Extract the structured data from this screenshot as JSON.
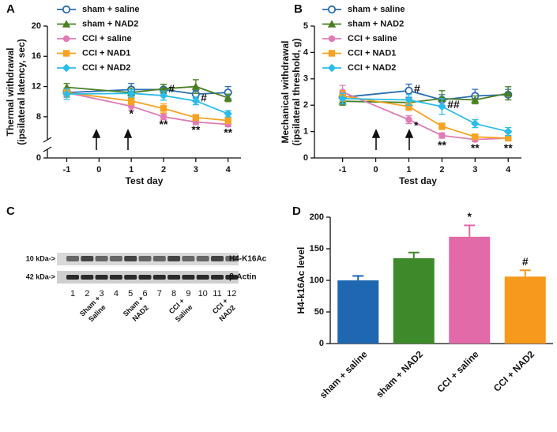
{
  "chart_data": [
    {
      "type": "line",
      "panel": "A",
      "ylabel": [
        "Thermal withdrawal",
        "(ipsilateral latency, sec)"
      ],
      "xlabel": "Test day",
      "x": [
        -1,
        1,
        2,
        3,
        4
      ],
      "xlim": [
        -1.6,
        4.4
      ],
      "xticks": [
        -1,
        0,
        1,
        2,
        3,
        4
      ],
      "ylim": [
        0,
        20
      ],
      "yticks": [
        0,
        8,
        12,
        16,
        20
      ],
      "ybreak": [
        0.5,
        6
      ],
      "series": [
        {
          "name": "sham + saline",
          "color": "#2a6db0",
          "marker": "circle-open",
          "values": [
            11.2,
            11.6,
            11.6,
            11.0,
            11.2
          ],
          "errors": [
            0.6,
            0.8,
            0.7,
            0.5,
            0.8
          ]
        },
        {
          "name": "sham + NAD2",
          "color": "#4a7f23",
          "marker": "triangle",
          "values": [
            11.9,
            11.2,
            11.7,
            12.0,
            10.5
          ],
          "errors": [
            0.5,
            0.6,
            0.6,
            0.9,
            0.5
          ]
        },
        {
          "name": "CCI + saline",
          "color": "#e07bb5",
          "marker": "circle",
          "values": [
            11.2,
            9.4,
            8.0,
            7.3,
            7.0
          ],
          "errors": [
            0.5,
            0.5,
            0.4,
            0.3,
            0.3
          ]
        },
        {
          "name": "CCI + NAD1",
          "color": "#f5a321",
          "marker": "square",
          "values": [
            11.2,
            10.1,
            9.1,
            7.9,
            7.5
          ],
          "errors": [
            0.5,
            0.5,
            0.6,
            0.4,
            0.4
          ]
        },
        {
          "name": "CCI + NAD2",
          "color": "#2bbde8",
          "marker": "diamond",
          "values": [
            11.0,
            11.1,
            10.8,
            10.1,
            8.4
          ],
          "errors": [
            0.7,
            0.5,
            0.6,
            0.5,
            0.4
          ]
        }
      ],
      "annotations": [
        {
          "text": "*",
          "x": 1,
          "y": 8.3
        },
        {
          "text": "**",
          "x": 2,
          "y": 6.9
        },
        {
          "text": "**",
          "x": 3,
          "y": 6.2
        },
        {
          "text": "**",
          "x": 4,
          "y": 5.6
        },
        {
          "text": "#",
          "x": 2.25,
          "y": 11.6
        },
        {
          "text": "#",
          "x": 3.25,
          "y": 10.4
        }
      ]
    },
    {
      "type": "line",
      "panel": "B",
      "ylabel": [
        "Mechanical withdrawal",
        "(ipsilateral threshold, g)"
      ],
      "xlabel": "Test day",
      "x": [
        -1,
        1,
        2,
        3,
        4
      ],
      "xlim": [
        -1.85,
        4.4
      ],
      "xticks": [
        -1,
        0,
        1,
        2,
        3,
        4
      ],
      "ylim": [
        0,
        5
      ],
      "yticks": [
        0,
        1,
        2,
        3,
        4,
        5
      ],
      "series": [
        {
          "name": "sham + saline",
          "color": "#2a6db0",
          "marker": "circle-open",
          "values": [
            2.3,
            2.55,
            2.2,
            2.35,
            2.4
          ],
          "errors": [
            0.15,
            0.25,
            0.2,
            0.25,
            0.2
          ]
        },
        {
          "name": "sham + NAD2",
          "color": "#4a7f23",
          "marker": "triangle",
          "values": [
            2.15,
            2.1,
            2.25,
            2.2,
            2.45
          ],
          "errors": [
            0.15,
            0.15,
            0.3,
            0.15,
            0.25
          ]
        },
        {
          "name": "CCI + saline",
          "color": "#e07bb5",
          "marker": "circle",
          "values": [
            2.5,
            1.45,
            0.85,
            0.7,
            0.75
          ],
          "errors": [
            0.25,
            0.15,
            0.1,
            0.08,
            0.08
          ]
        },
        {
          "name": "CCI + NAD1",
          "color": "#f5a321",
          "marker": "square",
          "values": [
            2.35,
            1.95,
            1.2,
            0.8,
            0.75
          ],
          "errors": [
            0.2,
            0.15,
            0.12,
            0.1,
            0.1
          ]
        },
        {
          "name": "CCI + NAD2",
          "color": "#2bbde8",
          "marker": "diamond",
          "values": [
            2.25,
            2.2,
            1.95,
            1.3,
            1.0
          ],
          "errors": [
            0.2,
            0.2,
            0.3,
            0.15,
            0.15
          ]
        }
      ],
      "annotations": [
        {
          "text": "#",
          "x": 1.25,
          "y": 2.6
        },
        {
          "text": "##",
          "x": 2.35,
          "y": 2.0
        },
        {
          "text": "*",
          "x": 1.22,
          "y": 1.2
        },
        {
          "text": "**",
          "x": 2,
          "y": 0.45
        },
        {
          "text": "**",
          "x": 3,
          "y": 0.35
        },
        {
          "text": "**",
          "x": 4,
          "y": 0.35
        }
      ]
    },
    {
      "type": "blot",
      "panel": "C",
      "markers": [
        {
          "label": "10 kDa->",
          "protein": "H4-K16Ac"
        },
        {
          "label": "42 kDa->",
          "protein": "β-Actin"
        }
      ],
      "lanes": [
        1,
        2,
        3,
        4,
        5,
        6,
        7,
        8,
        9,
        10,
        11,
        12
      ],
      "groups": [
        [
          "Sham +",
          "Saline"
        ],
        [
          "Sham +",
          "NAD2"
        ],
        [
          "CCI +",
          "Saline"
        ],
        [
          "CCI +",
          "NAD2"
        ]
      ]
    },
    {
      "type": "bar",
      "panel": "D",
      "ylabel": "H4-k16Ac level",
      "categories": [
        "sham + saline",
        "sham + NAD2",
        "CCI + saline",
        "CCI + NAD2"
      ],
      "values": [
        100,
        135,
        169,
        106
      ],
      "errors": [
        7,
        9,
        18,
        10
      ],
      "colors": [
        "#1f67b1",
        "#3e8a2a",
        "#e26aa9",
        "#f7991c"
      ],
      "significance": [
        null,
        null,
        "*",
        "#"
      ],
      "ylim": [
        0,
        200
      ],
      "yticks": [
        0,
        50,
        100,
        150,
        200
      ]
    }
  ]
}
